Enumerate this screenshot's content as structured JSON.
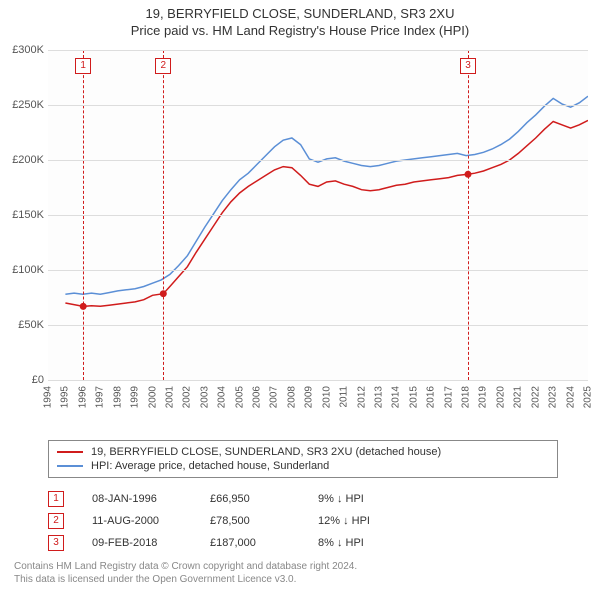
{
  "title1": "19, BERRYFIELD CLOSE, SUNDERLAND, SR3 2XU",
  "title2": "Price paid vs. HM Land Registry's House Price Index (HPI)",
  "chart": {
    "type": "line",
    "background_color": "#fdfdfd",
    "grid_color": "#dddddd",
    "text_color": "#555555",
    "y": {
      "min": 0,
      "max": 300000,
      "step": 50000,
      "prefix": "£",
      "suffix": "K",
      "ticks": [
        "£0",
        "£50K",
        "£100K",
        "£150K",
        "£200K",
        "£250K",
        "£300K"
      ]
    },
    "x": {
      "min": 1994,
      "max": 2025,
      "step": 1,
      "ticks": [
        "1994",
        "1995",
        "1996",
        "1997",
        "1998",
        "1999",
        "2000",
        "2001",
        "2002",
        "2003",
        "2004",
        "2005",
        "2006",
        "2007",
        "2008",
        "2009",
        "2010",
        "2011",
        "2012",
        "2013",
        "2014",
        "2015",
        "2016",
        "2017",
        "2018",
        "2019",
        "2020",
        "2021",
        "2022",
        "2023",
        "2024",
        "2025"
      ]
    },
    "series": [
      {
        "name": "19, BERRYFIELD CLOSE, SUNDERLAND, SR3 2XU (detached house)",
        "color": "#d01c1c",
        "width": 1.5,
        "points": [
          [
            1995.0,
            70000
          ],
          [
            1996.02,
            66950
          ],
          [
            1996.5,
            67500
          ],
          [
            1997,
            67000
          ],
          [
            1997.5,
            68000
          ],
          [
            1998,
            69000
          ],
          [
            1998.5,
            70000
          ],
          [
            1999,
            71000
          ],
          [
            1999.5,
            73000
          ],
          [
            2000,
            77000
          ],
          [
            2000.62,
            78500
          ],
          [
            2001,
            85000
          ],
          [
            2001.5,
            94000
          ],
          [
            2002,
            103000
          ],
          [
            2002.5,
            116000
          ],
          [
            2003,
            128000
          ],
          [
            2003.5,
            140000
          ],
          [
            2004,
            152000
          ],
          [
            2004.5,
            162000
          ],
          [
            2005,
            170000
          ],
          [
            2005.5,
            176000
          ],
          [
            2006,
            181000
          ],
          [
            2006.5,
            186000
          ],
          [
            2007,
            191000
          ],
          [
            2007.5,
            194000
          ],
          [
            2008,
            193000
          ],
          [
            2008.5,
            186000
          ],
          [
            2009,
            178000
          ],
          [
            2009.5,
            176000
          ],
          [
            2010,
            180000
          ],
          [
            2010.5,
            181000
          ],
          [
            2011,
            178000
          ],
          [
            2011.5,
            176000
          ],
          [
            2012,
            173000
          ],
          [
            2012.5,
            172000
          ],
          [
            2013,
            173000
          ],
          [
            2013.5,
            175000
          ],
          [
            2014,
            177000
          ],
          [
            2014.5,
            178000
          ],
          [
            2015,
            180000
          ],
          [
            2015.5,
            181000
          ],
          [
            2016,
            182000
          ],
          [
            2016.5,
            183000
          ],
          [
            2017,
            184000
          ],
          [
            2017.5,
            186000
          ],
          [
            2018.11,
            187000
          ],
          [
            2018.5,
            188000
          ],
          [
            2019,
            190000
          ],
          [
            2019.5,
            193000
          ],
          [
            2020,
            196000
          ],
          [
            2020.5,
            200000
          ],
          [
            2021,
            206000
          ],
          [
            2021.5,
            213000
          ],
          [
            2022,
            220000
          ],
          [
            2022.5,
            228000
          ],
          [
            2023,
            235000
          ],
          [
            2023.5,
            232000
          ],
          [
            2024,
            229000
          ],
          [
            2024.5,
            232000
          ],
          [
            2025,
            236000
          ]
        ]
      },
      {
        "name": "HPI: Average price, detached house, Sunderland",
        "color": "#5b8fd6",
        "width": 1.5,
        "points": [
          [
            1995.0,
            78000
          ],
          [
            1995.5,
            79000
          ],
          [
            1996,
            78000
          ],
          [
            1996.5,
            79000
          ],
          [
            1997,
            78000
          ],
          [
            1997.5,
            79500
          ],
          [
            1998,
            81000
          ],
          [
            1998.5,
            82000
          ],
          [
            1999,
            83000
          ],
          [
            1999.5,
            85000
          ],
          [
            2000,
            88000
          ],
          [
            2000.5,
            91000
          ],
          [
            2001,
            96000
          ],
          [
            2001.5,
            104000
          ],
          [
            2002,
            113000
          ],
          [
            2002.5,
            126000
          ],
          [
            2003,
            139000
          ],
          [
            2003.5,
            151000
          ],
          [
            2004,
            163000
          ],
          [
            2004.5,
            173000
          ],
          [
            2005,
            182000
          ],
          [
            2005.5,
            188000
          ],
          [
            2006,
            196000
          ],
          [
            2006.5,
            204000
          ],
          [
            2007,
            212000
          ],
          [
            2007.5,
            218000
          ],
          [
            2008,
            220000
          ],
          [
            2008.5,
            214000
          ],
          [
            2009,
            201000
          ],
          [
            2009.5,
            198000
          ],
          [
            2010,
            201000
          ],
          [
            2010.5,
            202000
          ],
          [
            2011,
            199000
          ],
          [
            2011.5,
            197000
          ],
          [
            2012,
            195000
          ],
          [
            2012.5,
            194000
          ],
          [
            2013,
            195000
          ],
          [
            2013.5,
            197000
          ],
          [
            2014,
            199000
          ],
          [
            2014.5,
            200000
          ],
          [
            2015,
            201000
          ],
          [
            2015.5,
            202000
          ],
          [
            2016,
            203000
          ],
          [
            2016.5,
            204000
          ],
          [
            2017,
            205000
          ],
          [
            2017.5,
            206000
          ],
          [
            2018,
            204000
          ],
          [
            2018.5,
            205000
          ],
          [
            2019,
            207000
          ],
          [
            2019.5,
            210000
          ],
          [
            2020,
            214000
          ],
          [
            2020.5,
            219000
          ],
          [
            2021,
            226000
          ],
          [
            2021.5,
            234000
          ],
          [
            2022,
            241000
          ],
          [
            2022.5,
            249000
          ],
          [
            2023,
            256000
          ],
          [
            2023.5,
            251000
          ],
          [
            2024,
            248000
          ],
          [
            2024.5,
            252000
          ],
          [
            2025,
            258000
          ]
        ]
      }
    ],
    "sale_markers": [
      {
        "n": "1",
        "year": 1996.02,
        "price": 66950
      },
      {
        "n": "2",
        "year": 2000.62,
        "price": 78500
      },
      {
        "n": "3",
        "year": 2018.11,
        "price": 187000
      }
    ],
    "marker_color": "#d01c1c"
  },
  "legend": {
    "border_color": "#888888",
    "items": [
      {
        "color": "#d01c1c",
        "label": "19, BERRYFIELD CLOSE, SUNDERLAND, SR3 2XU (detached house)"
      },
      {
        "color": "#5b8fd6",
        "label": "HPI: Average price, detached house, Sunderland"
      }
    ]
  },
  "sales": [
    {
      "n": "1",
      "date": "08-JAN-1996",
      "price": "£66,950",
      "diff": "9% ↓ HPI"
    },
    {
      "n": "2",
      "date": "11-AUG-2000",
      "price": "£78,500",
      "diff": "12% ↓ HPI"
    },
    {
      "n": "3",
      "date": "09-FEB-2018",
      "price": "£187,000",
      "diff": "8% ↓ HPI"
    }
  ],
  "attribution": {
    "line1": "Contains HM Land Registry data © Crown copyright and database right 2024.",
    "line2": "This data is licensed under the Open Government Licence v3.0."
  }
}
